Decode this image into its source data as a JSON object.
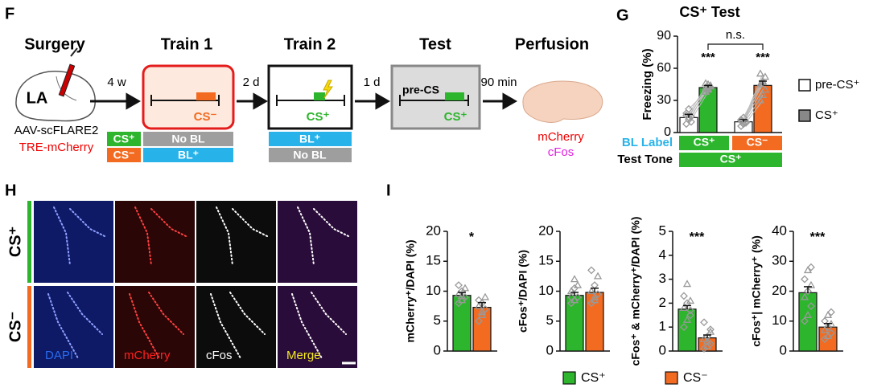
{
  "panel_letters": [
    "F",
    "G",
    "H",
    "I"
  ],
  "panel_f": {
    "stages": [
      "Surgery",
      "Train 1",
      "Train 2",
      "Test",
      "Perfusion"
    ],
    "intervals": [
      "4 w",
      "2 d",
      "1 d",
      "90 min"
    ],
    "brain_label": "LA",
    "virus": [
      "AAV-scFLARE2",
      "TRE-mCherry"
    ],
    "tone_key": [
      "CS⁺",
      "CS⁻"
    ],
    "train1_label": [
      "No BL",
      "BL⁺"
    ],
    "train2_label": [
      "BL⁺",
      "No BL"
    ],
    "train1_tone": "CS⁻",
    "train2_tone": "CS⁺",
    "test_pre": "pre-CS",
    "test_tone": "CS⁺",
    "perfusion_stains": [
      "mCherry",
      "cFos"
    ]
  },
  "panel_h": {
    "rows": [
      "CS⁺",
      "CS⁻"
    ],
    "channels": [
      "DAPI",
      "mCherry",
      "cFos",
      "Merge"
    ]
  },
  "panel_i_legend": {
    "names": [
      "CS⁺",
      "CS⁻"
    ],
    "colors": [
      "#2db52d",
      "#f26b21"
    ]
  },
  "chart_data": [
    {
      "type": "bar",
      "title": "CS⁺ Test",
      "ylabel": "Freezing (%)",
      "category_label": "BL Label",
      "categories": [
        "CS⁺",
        "CS⁻"
      ],
      "test_tone_label": "Test Tone",
      "test_tone": "CS⁺",
      "ylim": [
        0,
        90
      ],
      "yticks": [
        0,
        30,
        60,
        90
      ],
      "series": [
        {
          "name": "pre-CS⁺",
          "color": "#ffffff",
          "values": [
            14,
            10
          ],
          "errors": [
            3,
            2
          ],
          "points": [
            [
              8,
              12,
              15,
              18,
              22,
              10,
              16,
              14
            ],
            [
              6,
              8,
              10,
              12,
              14,
              9,
              11,
              8
            ]
          ]
        },
        {
          "name": "CS⁺",
          "color": "#888888",
          "colors": [
            "#2db52d",
            "#f26b21"
          ],
          "values": [
            42,
            44
          ],
          "errors": [
            2,
            4
          ],
          "points": [
            [
              38,
              41,
              44,
              46,
              40,
              43,
              42,
              45
            ],
            [
              30,
              35,
              40,
              45,
              48,
              52,
              55,
              47
            ]
          ]
        }
      ],
      "annotations": [
        "***",
        "***"
      ],
      "comparison": "n.s."
    },
    {
      "type": "bar",
      "ylabel": "mCherry⁺/DAPI (%)",
      "ylim": [
        0,
        20
      ],
      "yticks": [
        0,
        5,
        10,
        15,
        20
      ],
      "values": [
        9.3,
        7.3
      ],
      "errors": [
        0.5,
        0.8
      ],
      "annotation": "*",
      "points": [
        [
          8,
          8.5,
          9,
          9.5,
          10,
          10.5,
          11,
          9.2
        ],
        [
          5,
          6,
          7,
          7.5,
          8,
          9,
          8.5,
          6.5
        ]
      ]
    },
    {
      "type": "bar",
      "ylabel": "cFos⁺/DAPI (%)",
      "ylim": [
        0,
        20
      ],
      "yticks": [
        0,
        5,
        10,
        15,
        20
      ],
      "values": [
        9.3,
        9.8
      ],
      "errors": [
        0.5,
        0.7
      ],
      "points": [
        [
          8,
          8.5,
          9,
          10,
          10.5,
          11,
          9,
          12
        ],
        [
          8,
          9,
          9.5,
          10,
          11,
          12.5,
          13.5,
          8.5
        ]
      ]
    },
    {
      "type": "bar",
      "ylabel": "cFos⁺ & mCherry⁺/DAPI (%)",
      "ylim": [
        0,
        5
      ],
      "yticks": [
        0,
        1,
        2,
        3,
        4,
        5
      ],
      "values": [
        1.75,
        0.55
      ],
      "errors": [
        0.15,
        0.12
      ],
      "annotation": "***",
      "points": [
        [
          1,
          1.3,
          1.5,
          1.8,
          2,
          2.1,
          2.3,
          2.8,
          1.7
        ],
        [
          0.1,
          0.2,
          0.3,
          0.5,
          0.6,
          0.8,
          1.2,
          0.4,
          0.9
        ]
      ]
    },
    {
      "type": "bar",
      "ylabel": "cFos⁺| mCherry⁺ (%)",
      "ylim": [
        0,
        40
      ],
      "yticks": [
        0,
        10,
        20,
        30,
        40
      ],
      "values": [
        19.5,
        8
      ],
      "errors": [
        2,
        1.2
      ],
      "annotation": "***",
      "points": [
        [
          10,
          12,
          15,
          18,
          20,
          22,
          24,
          27,
          28
        ],
        [
          4,
          5,
          6,
          7,
          8,
          9,
          10,
          12,
          13
        ]
      ]
    }
  ]
}
